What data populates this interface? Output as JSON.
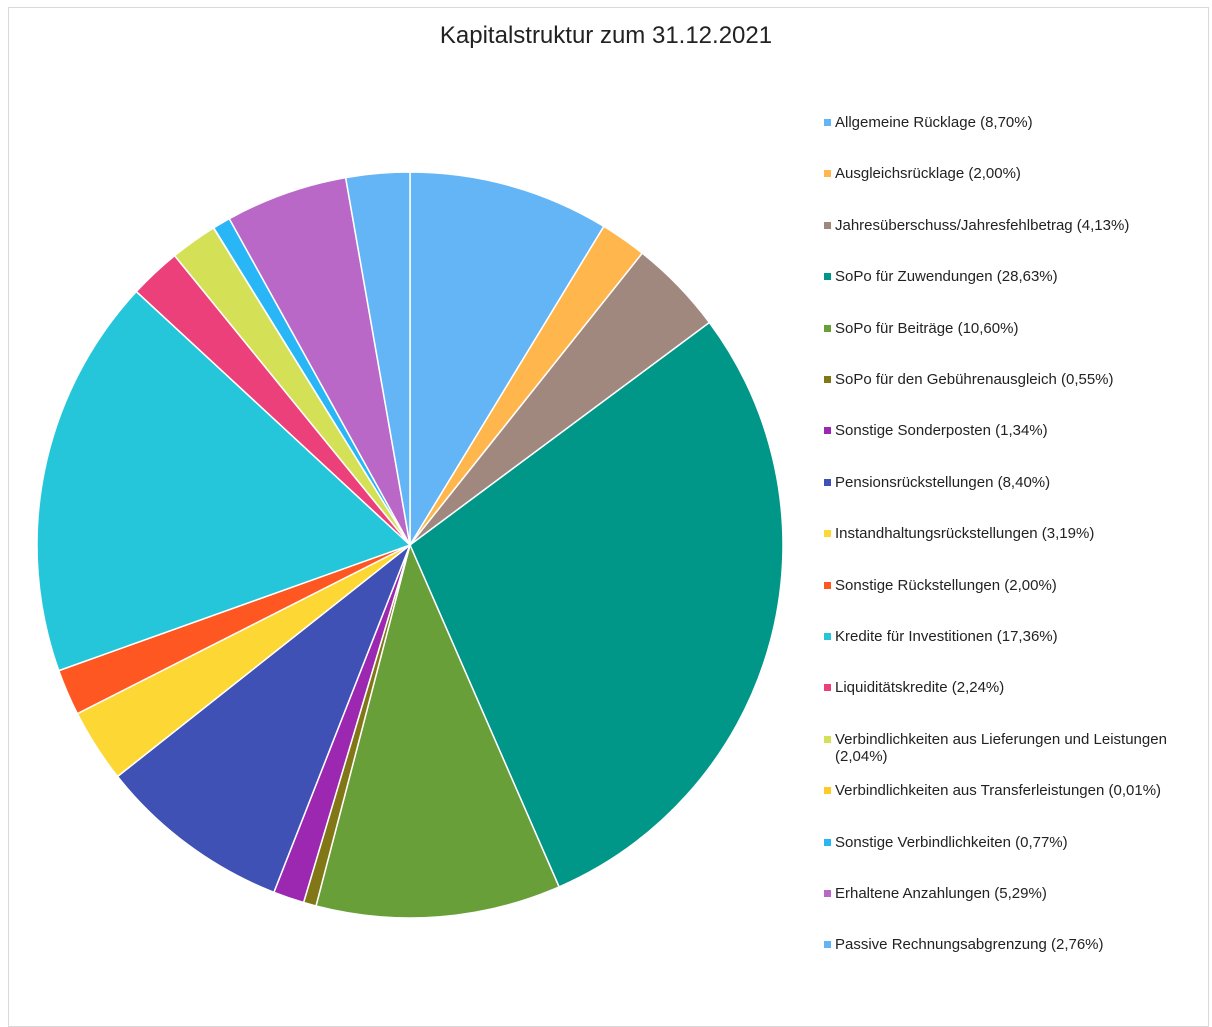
{
  "chart_data": {
    "type": "pie",
    "title": "Kapitalstruktur zum 31.12.2021",
    "legend_position": "right",
    "slices": [
      {
        "label": "Allgemeine Rücklage (8,70%)",
        "value": 8.7,
        "color": "#64b5f6"
      },
      {
        "label": "Ausgleichsrücklage (2,00%)",
        "value": 2.0,
        "color": "#ffb74d"
      },
      {
        "label": "Jahresüberschuss/Jahresfehlbetrag (4,13%)",
        "value": 4.13,
        "color": "#a1887f"
      },
      {
        "label": "SoPo für Zuwendungen (28,63%)",
        "value": 28.63,
        "color": "#009688"
      },
      {
        "label": "SoPo für Beiträge (10,60%)",
        "value": 10.6,
        "color": "#689f38"
      },
      {
        "label": "SoPo für den Gebührenausgleich (0,55%)",
        "value": 0.55,
        "color": "#827717"
      },
      {
        "label": "Sonstige Sonderposten (1,34%)",
        "value": 1.34,
        "color": "#9c27b0"
      },
      {
        "label": "Pensionsrückstellungen (8,40%)",
        "value": 8.4,
        "color": "#3f51b5"
      },
      {
        "label": "Instandhaltungsrückstellungen (3,19%)",
        "value": 3.19,
        "color": "#fdd835"
      },
      {
        "label": "Sonstige Rückstellungen (2,00%)",
        "value": 2.0,
        "color": "#ff5722"
      },
      {
        "label": "Kredite für Investitionen (17,36%)",
        "value": 17.36,
        "color": "#26c6da"
      },
      {
        "label": "Liquiditätskredite (2,24%)",
        "value": 2.24,
        "color": "#ec407a"
      },
      {
        "label": "Verbindlichkeiten aus Lieferungen und Leistungen (2,04%)",
        "value": 2.04,
        "color": "#d4e157"
      },
      {
        "label": "Verbindlichkeiten aus Transferleistungen (0,01%)",
        "value": 0.01,
        "color": "#ffca28"
      },
      {
        "label": "Sonstige Verbindlichkeiten (0,77%)",
        "value": 0.77,
        "color": "#29b6f6"
      },
      {
        "label": "Erhaltene Anzahlungen (5,29%)",
        "value": 5.29,
        "color": "#ba68c8"
      },
      {
        "label": "Passive Rechnungsabgrenzung (2,76%)",
        "value": 2.76,
        "color": "#64b5f6"
      }
    ]
  }
}
